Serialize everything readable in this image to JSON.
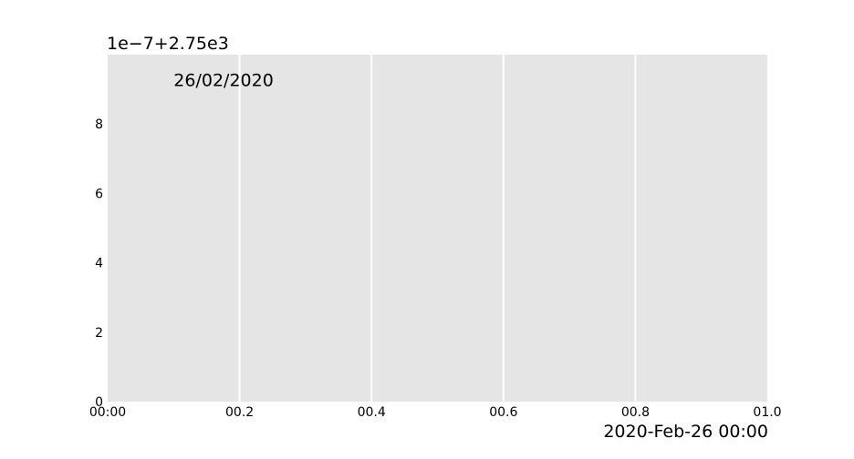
{
  "chart_data": {
    "type": "line",
    "title": "",
    "xlabel": "",
    "ylabel": "",
    "series": [],
    "xlim": [
      0.0,
      1.0
    ],
    "ylim": [
      0,
      10
    ],
    "x_ticks": [
      {
        "value": 0.0,
        "label": "00:00"
      },
      {
        "value": 0.2,
        "label": "00.2"
      },
      {
        "value": 0.4,
        "label": "00.4"
      },
      {
        "value": 0.6,
        "label": "00.6"
      },
      {
        "value": 0.8,
        "label": "00.8"
      },
      {
        "value": 1.0,
        "label": "01.0"
      }
    ],
    "y_ticks": [
      {
        "value": 0,
        "label": "0"
      },
      {
        "value": 2,
        "label": "2"
      },
      {
        "value": 4,
        "label": "4"
      },
      {
        "value": 6,
        "label": "6"
      },
      {
        "value": 8,
        "label": "8"
      }
    ],
    "x_offset_label": "2020-Feb-26 00:00",
    "y_offset_label": "1e−7+2.75e3",
    "annotation": {
      "text": "26/02/2020",
      "x": 0.1,
      "y": 9.1
    },
    "grid": {
      "x": true,
      "y": false
    },
    "legend": "none",
    "colors": {
      "plot_background": "#e5e5e5",
      "grid": "#ffffff",
      "text": "#000000"
    }
  }
}
